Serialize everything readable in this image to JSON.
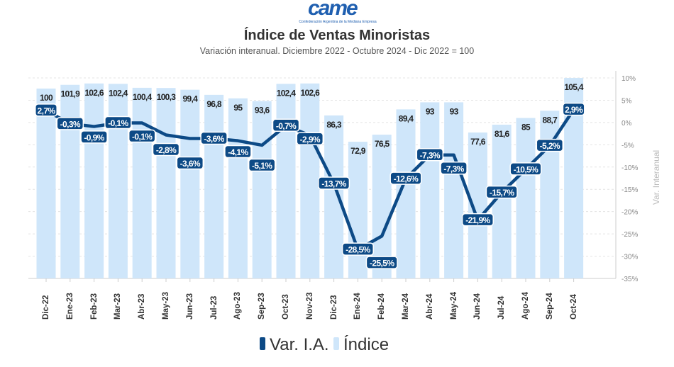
{
  "logo": {
    "text": "came",
    "subtitle": "Confederación Argentina de la Mediana Empresa"
  },
  "chart_data": {
    "type": "bar+line",
    "title": "Índice de Ventas Minoristas",
    "subtitle": "Variación interanual. Diciembre 2022 - Octubre 2024 - Dic 2022 = 100",
    "categories": [
      "Dic-22",
      "Ene-23",
      "Feb-23",
      "Mar-23",
      "Abr-23",
      "May-23",
      "Jun-23",
      "Jul-23",
      "Ago-23",
      "Sep-23",
      "Oct-23",
      "Nov-23",
      "Dic-23",
      "Ene-24",
      "Feb-24",
      "Mar-24",
      "Abr-24",
      "May-24",
      "Jun-24",
      "Jul-24",
      "Ago-24",
      "Sep-24",
      "Oct-24"
    ],
    "series": [
      {
        "name": "Índice",
        "type": "bar",
        "color": "#cfe6fa",
        "values": [
          100,
          101.9,
          102.6,
          102.4,
          100.4,
          100.3,
          99.4,
          96.8,
          95,
          93.6,
          102.4,
          102.6,
          86.3,
          72.9,
          76.5,
          89.4,
          93,
          93,
          77.6,
          81.6,
          85,
          88.7,
          105.4
        ],
        "labels": [
          "100",
          "101,9",
          "102,6",
          "102,4",
          "100,4",
          "100,3",
          "99,4",
          "96,8",
          "95",
          "93,6",
          "102,4",
          "102,6",
          "86,3",
          "72,9",
          "76,5",
          "89,4",
          "93",
          "93",
          "77,6",
          "81,6",
          "85",
          "88,7",
          "105,4"
        ]
      },
      {
        "name": "Var. I.A.",
        "type": "line",
        "color": "#0d4a86",
        "values": [
          2.7,
          -0.3,
          -0.9,
          -0.1,
          -0.1,
          -2.8,
          -3.6,
          -3.6,
          -4.1,
          -5.1,
          -0.7,
          -2.9,
          -13.7,
          -28.5,
          -25.5,
          -12.6,
          -7.3,
          -7.3,
          -21.9,
          -15.7,
          -10.5,
          -5.2,
          2.9
        ],
        "labels": [
          "2,7%",
          "-0,3%",
          "-0,9%",
          "-0,1%",
          "-0,1%",
          "-2,8%",
          "-3,6%",
          "-3,6%",
          "-4,1%",
          "-5,1%",
          "-0,7%",
          "-2,9%",
          "-13,7%",
          "-28,5%",
          "-25,5%",
          "-12,6%",
          "-7,3%",
          "-7,3%",
          "-21,9%",
          "-15,7%",
          "-10,5%",
          "-5,2%",
          "2,9%"
        ]
      }
    ],
    "y2label": "Var. Interanual",
    "y2lim": [
      -35,
      10
    ],
    "y2ticks": [
      "10%",
      "5%",
      "0%",
      "-5%",
      "-10%",
      "-15%",
      "-20%",
      "-25%",
      "-30%",
      "-35%"
    ],
    "grid": true,
    "legend": {
      "position": "bottom",
      "items": [
        "Var. I.A.",
        "Índice"
      ]
    }
  }
}
